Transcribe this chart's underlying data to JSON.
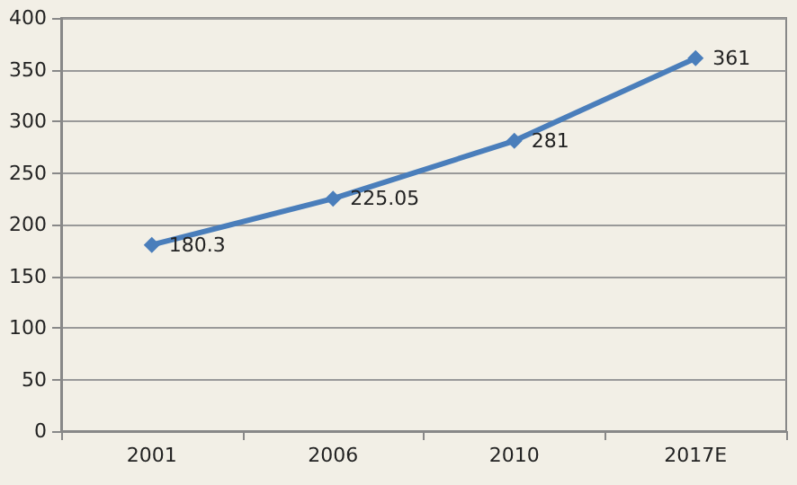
{
  "chart_data": {
    "type": "line",
    "categories": [
      "2001",
      "2006",
      "2010",
      "2017E"
    ],
    "series": [
      {
        "color": "#4a7ebb",
        "values": [
          180.3,
          225.05,
          281,
          361
        ]
      }
    ],
    "ylim": [
      0,
      400
    ],
    "yticks": [
      0,
      50,
      100,
      150,
      200,
      250,
      300,
      350,
      400
    ],
    "grid": "y",
    "marker": "diamond",
    "line_style": "solid",
    "data_labels": true
  }
}
